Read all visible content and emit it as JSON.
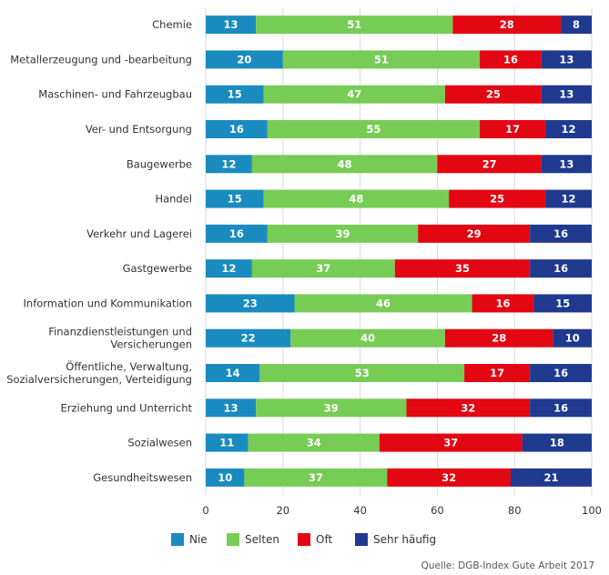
{
  "chart_data": {
    "type": "bar",
    "orientation": "horizontal",
    "stacked": true,
    "categories": [
      [
        "Chemie"
      ],
      [
        "Metallerzeugung und -bearbeitung"
      ],
      [
        "Maschinen- und Fahrzeugbau"
      ],
      [
        "Ver- und Entsorgung"
      ],
      [
        "Baugewerbe"
      ],
      [
        "Handel"
      ],
      [
        "Verkehr und Lagerei"
      ],
      [
        "Gastgewerbe"
      ],
      [
        "Information und Kommunikation"
      ],
      [
        "Finanzdienstleistungen und",
        "Versicherungen"
      ],
      [
        "Öffentliche, Verwaltung,",
        "Sozialversicherungen, Verteidigung"
      ],
      [
        "Erziehung und Unterricht"
      ],
      [
        "Sozialwesen"
      ],
      [
        "Gesundheitswesen"
      ]
    ],
    "series": [
      {
        "name": "Nie",
        "color": "#1a8bbf",
        "values": [
          13,
          20,
          15,
          16,
          12,
          15,
          16,
          12,
          23,
          22,
          14,
          13,
          11,
          10
        ]
      },
      {
        "name": "Selten",
        "color": "#77cc55",
        "values": [
          51,
          51,
          47,
          55,
          48,
          48,
          39,
          37,
          46,
          40,
          53,
          39,
          34,
          37
        ]
      },
      {
        "name": "Oft",
        "color": "#e30613",
        "values": [
          28,
          16,
          25,
          17,
          27,
          25,
          29,
          35,
          16,
          28,
          17,
          32,
          37,
          32
        ]
      },
      {
        "name": "Sehr häufig",
        "color": "#1f3a8f",
        "values": [
          8,
          13,
          13,
          12,
          13,
          12,
          16,
          16,
          15,
          10,
          16,
          16,
          18,
          21
        ]
      }
    ],
    "xlim": [
      0,
      100
    ],
    "xticks": [
      0,
      20,
      40,
      60,
      80,
      100
    ],
    "grid": true,
    "legend_position": "bottom",
    "source": "Quelle: DGB-Index Gute Arbeit 2017"
  }
}
